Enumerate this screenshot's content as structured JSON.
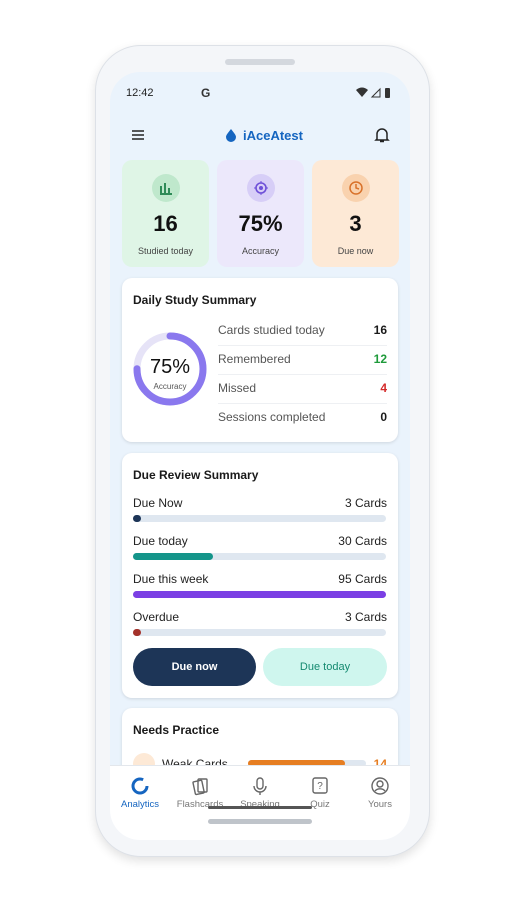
{
  "status_bar": {
    "time": "12:42",
    "google": "G"
  },
  "app_bar": {
    "title": "iAceAtest"
  },
  "stats": [
    {
      "value": "16",
      "label": "Studied today",
      "bg": "#dff5e6",
      "icon_bg": "#bfe8cc",
      "icon_color": "#2e8b57"
    },
    {
      "value": "75%",
      "label": "Accuracy",
      "bg": "#ece8fb",
      "icon_bg": "#d7cef7",
      "icon_color": "#6d4fd8"
    },
    {
      "value": "3",
      "label": "Due now",
      "bg": "#fde9d6",
      "icon_bg": "#f9d2ae",
      "icon_color": "#d9722a"
    }
  ],
  "daily_summary": {
    "title": "Daily Study Summary",
    "accuracy": {
      "value": 75,
      "label": "75%",
      "caption": "Accuracy"
    },
    "rows": [
      {
        "label": "Cards studied today",
        "value": "16",
        "color": "#1a1a1a"
      },
      {
        "label": "Remembered",
        "value": "12",
        "color": "#1e9a3a"
      },
      {
        "label": "Missed",
        "value": "4",
        "color": "#d42a2a"
      },
      {
        "label": "Sessions completed",
        "value": "0",
        "color": "#1a1a1a"
      }
    ]
  },
  "due_review": {
    "title": "Due Review Summary",
    "rows": [
      {
        "label": "Due Now",
        "cards": 3,
        "cards_label": "3 Cards",
        "color": "#1d3557"
      },
      {
        "label": "Due today",
        "cards": 30,
        "cards_label": "30 Cards",
        "color": "#14958a"
      },
      {
        "label": "Due this week",
        "cards": 95,
        "cards_label": "95 Cards",
        "color": "#7b3fe4"
      },
      {
        "label": "Overdue",
        "cards": 3,
        "cards_label": "3 Cards",
        "color": "#a4322a"
      }
    ],
    "buttons": [
      "Due now",
      "Due today"
    ]
  },
  "needs_practice": {
    "title": "Needs Practice",
    "rows": [
      {
        "label": "Weak Cards",
        "count": 14,
        "color": "#e67e22"
      }
    ]
  },
  "nav": [
    "Analytics",
    "Flashcards",
    "Speaking",
    "Quiz",
    "Yours"
  ]
}
